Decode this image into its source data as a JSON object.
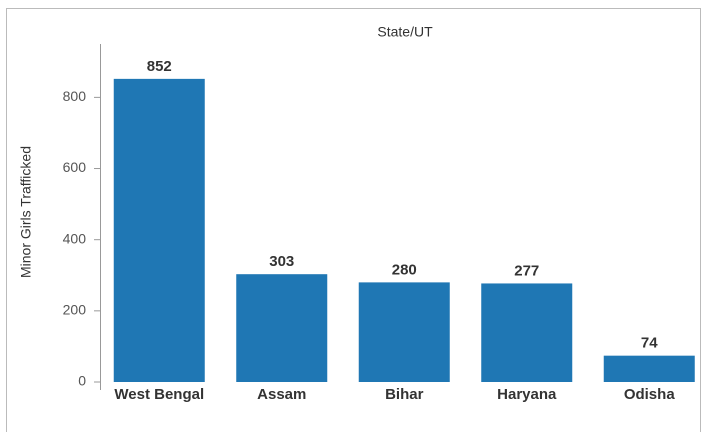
{
  "chart_data": {
    "type": "bar",
    "title": "State/UT",
    "y_label": "Minor Girls Trafficked",
    "categories": [
      "West Bengal",
      "Assam",
      "Bihar",
      "Haryana",
      "Odisha"
    ],
    "values": [
      852,
      303,
      280,
      277,
      74
    ],
    "color": "#1f77b4",
    "ylim": [
      0,
      950
    ],
    "yticks": [
      0,
      200,
      400,
      600,
      800
    ],
    "grid": false
  }
}
